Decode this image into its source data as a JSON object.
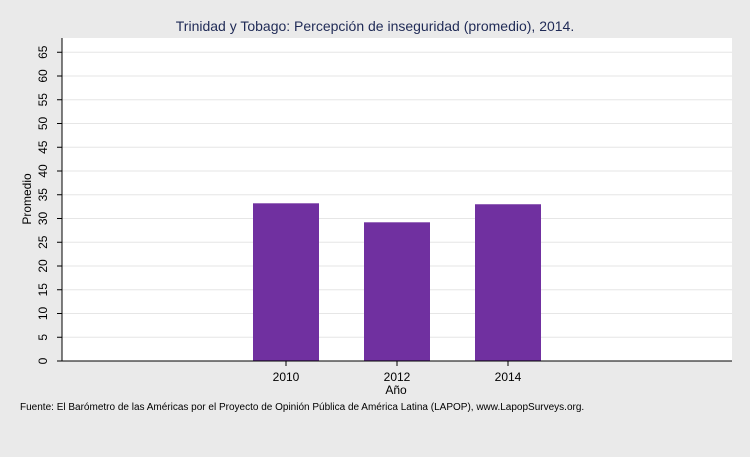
{
  "chart_data": {
    "type": "bar",
    "title": "Trinidad y Tobago: Percepción de inseguridad (promedio), 2014.",
    "xlabel": "Año",
    "ylabel": "Promedio",
    "categories": [
      "2010",
      "2012",
      "2014"
    ],
    "values": [
      33.2,
      29.2,
      33.0
    ],
    "ylim": [
      0,
      68
    ],
    "yticks": [
      0,
      5,
      10,
      15,
      20,
      25,
      30,
      35,
      40,
      45,
      50,
      55,
      60,
      65
    ],
    "grid": true,
    "bar_color": "#7030a0",
    "source": "Fuente: El Barómetro de las Américas por el Proyecto de Opinión Pública de América Latina (LAPOP), www.LapopSurveys.org."
  }
}
